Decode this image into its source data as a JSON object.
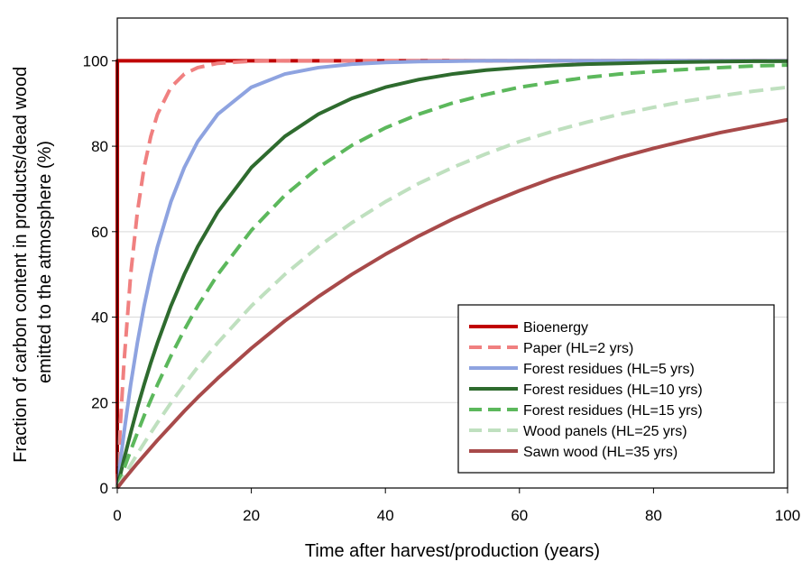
{
  "chart_data": {
    "type": "line",
    "xlabel": "Time after harvest/production (years)",
    "ylabel_lines": [
      "Fraction of carbon content in products/dead wood",
      "emitted to the atmosphere (%)"
    ],
    "xlim": [
      0,
      100
    ],
    "ylim": [
      0,
      110
    ],
    "x_ticks": [
      0,
      20,
      40,
      60,
      80,
      100
    ],
    "y_ticks": [
      0,
      20,
      40,
      60,
      80,
      100
    ],
    "grid": "horizontal",
    "legend_placement": "bottom-right",
    "x": [
      0,
      0.2,
      0.5,
      1,
      2,
      3,
      4,
      5,
      6,
      8,
      10,
      12,
      15,
      20,
      25,
      30,
      35,
      40,
      45,
      50,
      55,
      60,
      65,
      70,
      75,
      80,
      85,
      90,
      95,
      100
    ],
    "series": [
      {
        "name": "Bioenergy",
        "color": "#c00000",
        "dash": "solid",
        "x": [
          0,
          0.01,
          100
        ],
        "values": [
          0,
          100,
          100
        ]
      },
      {
        "name": "Paper (HL=2 yrs)",
        "color": "#f08080",
        "dash": "dashed",
        "values": [
          0,
          6.7,
          15.9,
          29.3,
          50.0,
          64.6,
          75.0,
          82.3,
          87.5,
          93.8,
          96.9,
          98.4,
          99.4,
          99.9,
          100,
          100,
          100,
          100,
          100,
          100,
          100,
          100,
          100,
          100,
          100,
          100,
          100,
          100,
          100,
          100
        ]
      },
      {
        "name": "Forest residues (HL=5 yrs)",
        "color": "#8ea3e0",
        "dash": "solid",
        "values": [
          0,
          2.7,
          6.7,
          12.9,
          24.2,
          34.0,
          42.6,
          50.0,
          56.5,
          67.0,
          75.0,
          81.1,
          87.5,
          93.8,
          96.9,
          98.4,
          99.2,
          99.6,
          99.8,
          99.9,
          100,
          100,
          100,
          100,
          100,
          100,
          100,
          100,
          100,
          100
        ]
      },
      {
        "name": "Forest residues (HL=10 yrs)",
        "color": "#2e6b2e",
        "dash": "solid",
        "values": [
          0,
          1.4,
          3.4,
          6.7,
          12.9,
          18.8,
          24.2,
          29.3,
          34.0,
          42.6,
          50.0,
          56.5,
          64.6,
          75.0,
          82.3,
          87.5,
          91.2,
          93.8,
          95.6,
          96.9,
          97.8,
          98.4,
          98.9,
          99.2,
          99.4,
          99.6,
          99.7,
          99.8,
          99.9,
          99.9
        ]
      },
      {
        "name": "Forest residues (HL=15 yrs)",
        "color": "#5cb85c",
        "dash": "dashed",
        "values": [
          0,
          0.9,
          2.3,
          4.5,
          8.8,
          12.9,
          16.9,
          20.6,
          24.2,
          30.9,
          37.0,
          42.6,
          50.0,
          60.3,
          68.5,
          75.0,
          80.2,
          84.3,
          87.5,
          90.1,
          92.1,
          93.8,
          95.0,
          96.1,
          96.9,
          97.5,
          98.0,
          98.4,
          98.8,
          99.0
        ]
      },
      {
        "name": "Wood panels (HL=25 yrs)",
        "color": "#bfe0bf",
        "dash": "dashed",
        "values": [
          0,
          0.6,
          1.4,
          2.7,
          5.4,
          8.0,
          10.5,
          12.9,
          15.3,
          19.9,
          24.2,
          28.3,
          34.0,
          42.6,
          50.0,
          56.5,
          62.1,
          67.0,
          71.3,
          75.0,
          78.2,
          81.1,
          83.5,
          85.6,
          87.5,
          89.1,
          90.6,
          91.8,
          92.9,
          93.8
        ]
      },
      {
        "name": "Sawn wood (HL=35 yrs)",
        "color": "#a84a4a",
        "dash": "solid",
        "values": [
          0,
          0.4,
          1.0,
          2.0,
          3.9,
          5.8,
          7.6,
          9.4,
          11.2,
          14.6,
          18.0,
          21.2,
          25.7,
          32.7,
          39.1,
          44.8,
          50.0,
          54.7,
          59.0,
          62.9,
          66.4,
          69.6,
          72.5,
          75.0,
          77.4,
          79.5,
          81.4,
          83.2,
          84.7,
          86.2
        ]
      }
    ]
  }
}
